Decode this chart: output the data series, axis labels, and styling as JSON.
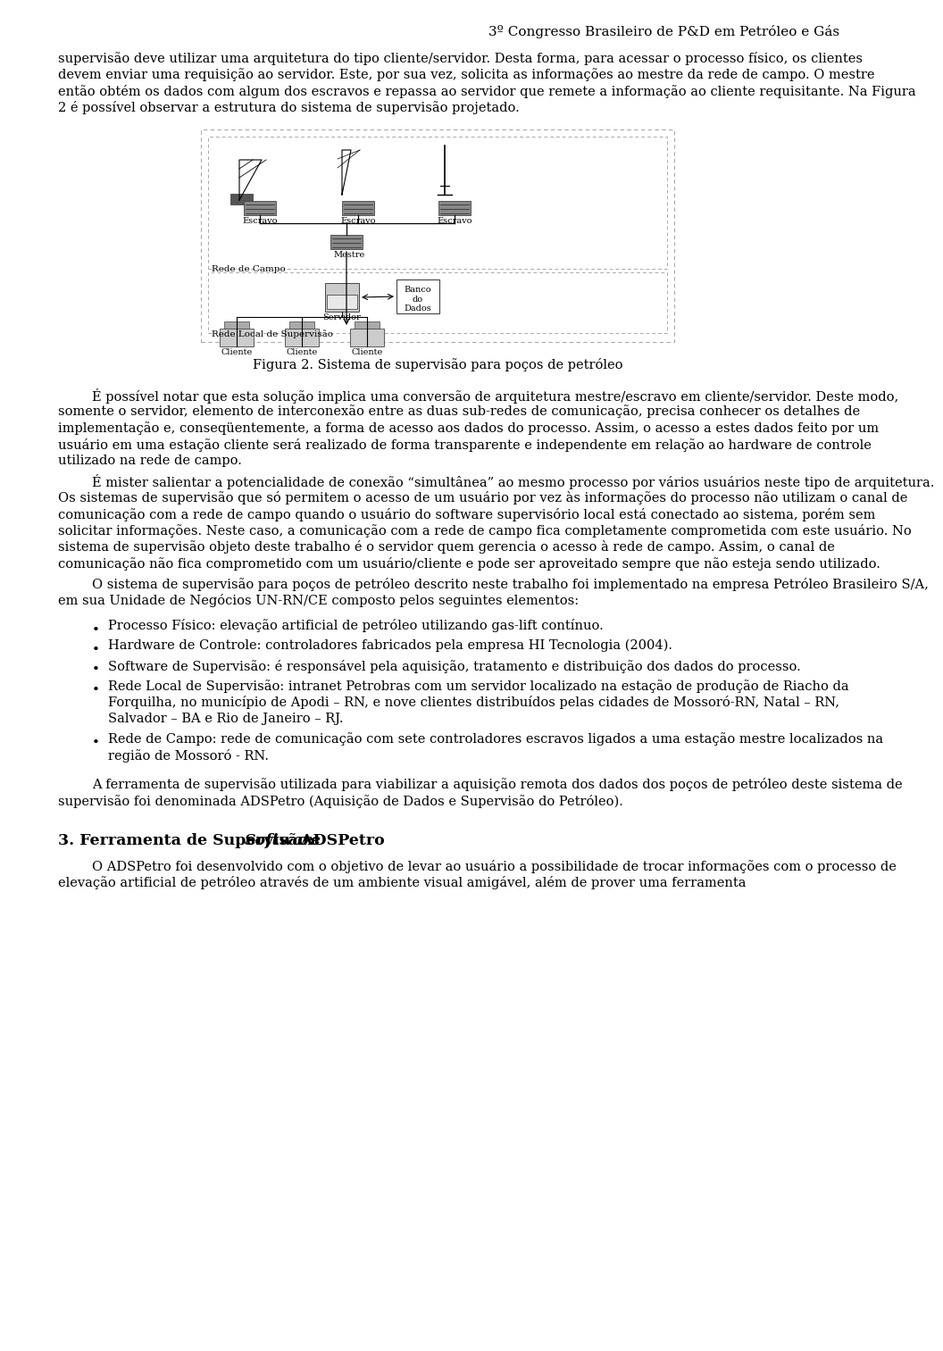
{
  "header": "3º Congresso Brasileiro de P&D em Petróleo e Gás",
  "background_color": "#ffffff",
  "figure_caption": "Figura 2. Sistema de supervisão para poços de petróleo",
  "para1": "supervisão deve utilizar uma arquitetura do tipo cliente/servidor. Desta forma, para acessar o processo físico, os clientes devem enviar uma requisição ao servidor. Este, por sua vez, solicita as informações ao mestre da rede de campo. O mestre então obtém os dados com algum dos escravos e repassa ao servidor que remete a informação ao cliente requisitante. Na Figura 2 é possível observar a estrutura do sistema de supervisão projetado.",
  "para2_first": "É possível notar que esta solução implica uma conversão de arquitetura mestre/escravo em cliente/servidor.",
  "para2_rest": "Deste modo, somente o servidor, elemento de interconexão entre as duas sub-redes de comunicação, precisa conhecer os detalhes de implementação e, conseqüentemente, a forma de acesso aos dados do processo. Assim, o acesso a estes dados feito por um usuário em uma estação cliente será realizado de forma transparente e independente em relação ao",
  "para2_italic": "hardware",
  "para2_end": "de controle utilizado na rede de campo.",
  "para3_first": "É mister salientar a potencialidade de conexão “simultânea” ao mesmo processo por vários usuários neste tipo de arquitetura. Os sistemas de supervisão que só permitem o acesso de um usuário por vez às informações do processo não utilizam o canal de comunicação com a rede de campo quando o usuário do",
  "para3_italic": "software",
  "para3_rest": "supervisório local está conectado ao sistema, porém sem solicitar informações. Neste caso, a comunicação com a rede de campo fica completamente comprometida com este usuário. No sistema de supervisão objeto deste trabalho é o servidor quem gerencia o acesso à rede de campo. Assim, o canal de comunicação não fica comprometido com um usuário/cliente e pode ser aproveitado sempre que não esteja sendo utilizado.",
  "para4": "O sistema de supervisão para poços de petróleo descrito neste trabalho foi implementado na empresa Petróleo Brasileiro S/A, em sua Unidade de Negócios UN-RN/CE composto pelos seguintes elementos:",
  "bullet1_normal": "Processo Físico: elevação artificial de petróleo utilizando ",
  "bullet1_italic": "gas-lift",
  "bullet1_end": " contínuo.",
  "bullet2_italic": "Hardware",
  "bullet2_end": " de Controle: controladores fabricados pela empresa HI Tecnologia (2004).",
  "bullet3_italic": "Software",
  "bullet3_end": " de Supervisão: é responsável pela aquisição, tratamento e distribuição dos dados do processo.",
  "bullet4_normal": "Rede Local de Supervisão: ",
  "bullet4_italic": "intranet",
  "bullet4_end": " Petrobras com um servidor localizado na estação de produção de Riacho da Forquilha, no município de Apodi – RN, e nove clientes distribuídos pelas cidades de Mossoró-RN, Natal – RN, Salvador – BA e Rio de Janeiro – RJ.",
  "bullet5": "Rede de Campo: rede de comunicação com sete controladores escravos ligados a uma estação mestre localizados na região de Mossoró - RN.",
  "final_para_normal": "A ferramenta de supervisão utilizada para viabilizar a aquisição remota dos dados dos poços de petróleo deste sistema de supervisão foi denominada ",
  "final_para_italic": "ADSPetro",
  "final_para_end": " (Aquisição de Dados e Supervisão do Petróleo).",
  "section_title_normal": "3. Ferramenta de Supervisão: ",
  "section_title_italic": "Software",
  "section_title_end": " ADSPetro",
  "last_para": "O ADSPetro foi desenvolvido com o objetivo de levar ao usuário a possibilidade de trocar informações com o processo de elevação artificial de petróleo através de um ambiente visual amigável, além de prover uma ferramenta"
}
